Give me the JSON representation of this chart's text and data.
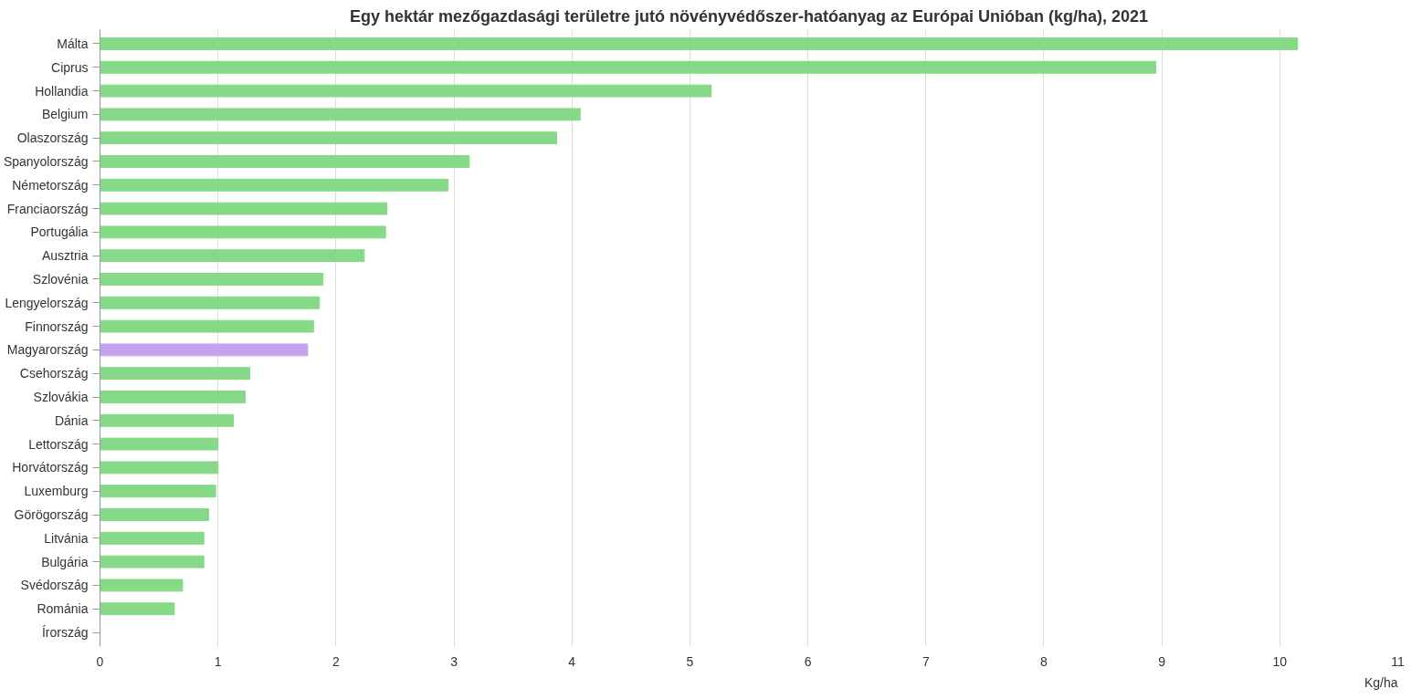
{
  "chart_data": {
    "type": "bar",
    "orientation": "horizontal",
    "title": "Egy hektár mezőgazdasági területre jutó növényvédőszer-hatóanyag az Európai Unióban (kg/ha), 2021",
    "xlabel": "Kg/ha",
    "categories": [
      "Málta",
      "Ciprus",
      "Hollandia",
      "Belgium",
      "Olaszország",
      "Spanyolország",
      "Németország",
      "Franciaország",
      "Portugália",
      "Ausztria",
      "Szlovénia",
      "Lengyelország",
      "Finnország",
      "Magyarország",
      "Csehország",
      "Szlovákia",
      "Dánia",
      "Lettország",
      "Horvátország",
      "Luxemburg",
      "Görögország",
      "Litvánia",
      "Bulgária",
      "Svédország",
      "Románia",
      "Írország"
    ],
    "values": [
      10.15,
      8.95,
      5.18,
      4.07,
      3.87,
      3.13,
      2.95,
      2.43,
      2.42,
      2.24,
      1.89,
      1.86,
      1.81,
      1.76,
      1.27,
      1.23,
      1.13,
      1.0,
      1.0,
      0.98,
      0.92,
      0.88,
      0.88,
      0.7,
      0.63,
      null
    ],
    "colors": [
      "#85d987",
      "#85d987",
      "#85d987",
      "#85d987",
      "#85d987",
      "#85d987",
      "#85d987",
      "#85d987",
      "#85d987",
      "#85d987",
      "#85d987",
      "#85d987",
      "#85d987",
      "#c3a3f0",
      "#85d987",
      "#85d987",
      "#85d987",
      "#85d987",
      "#85d987",
      "#85d987",
      "#85d987",
      "#85d987",
      "#85d987",
      "#85d987",
      "#85d987",
      "#85d987"
    ],
    "xlim": [
      0,
      11
    ],
    "xticks": [
      0,
      1,
      2,
      3,
      4,
      5,
      6,
      7,
      8,
      9,
      10,
      11
    ],
    "grid": "x"
  }
}
